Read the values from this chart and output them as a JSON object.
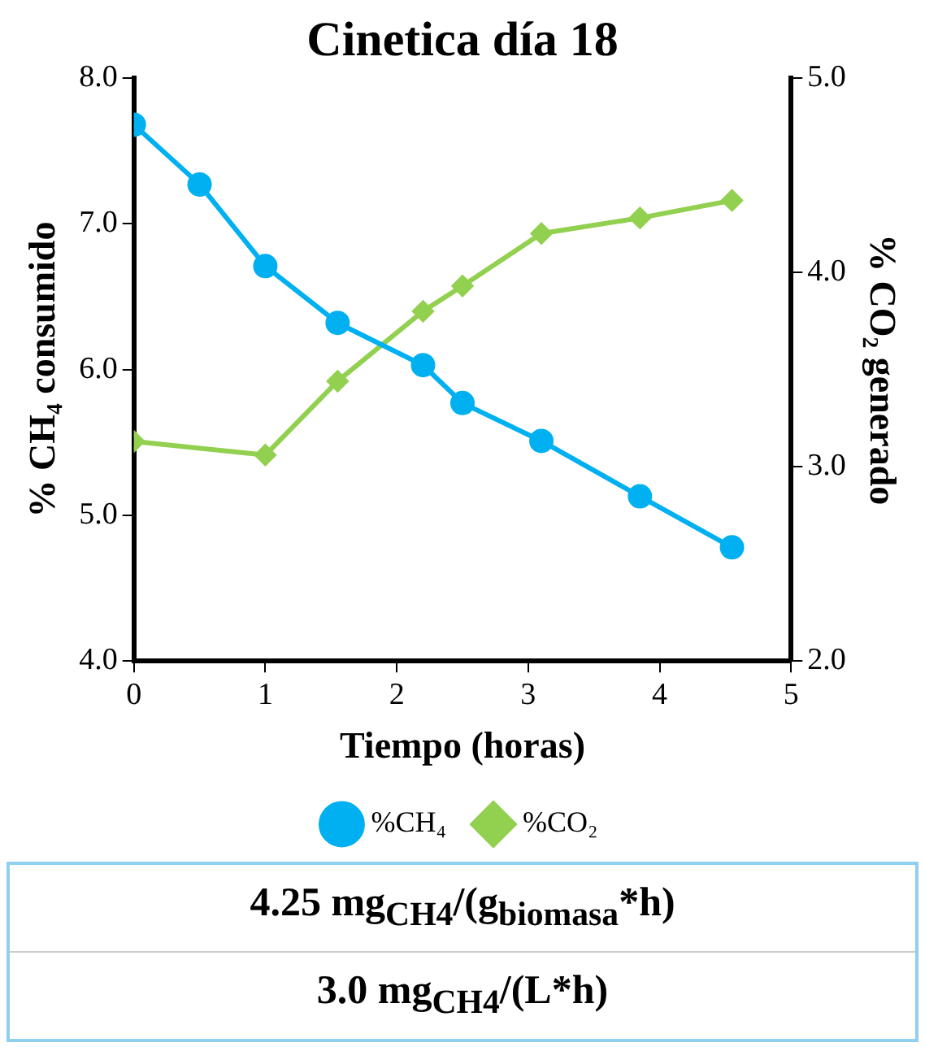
{
  "chart_data": {
    "type": "line",
    "title": "Cinetica día 18",
    "xlabel": "Tiempo (horas)",
    "ylabel": "% CH₄ consumido",
    "y2label": "% CO₂ generado",
    "series": [
      {
        "name": "%CH₄",
        "color": "#00b0f0",
        "marker": "circle",
        "x": [
          0,
          0.5,
          1,
          1.55,
          2.2,
          2.5,
          3.1,
          3.85,
          4.55
        ],
        "values": [
          7.68,
          7.27,
          6.71,
          6.32,
          6.03,
          5.77,
          5.51,
          5.13,
          4.78
        ]
      },
      {
        "name": "%CO₂",
        "color": "#92d050",
        "marker": "diamond",
        "axis": "y2",
        "x": [
          0,
          1,
          1.55,
          2.2,
          2.5,
          3.1,
          3.85,
          4.55
        ],
        "values": [
          3.13,
          3.06,
          3.44,
          3.8,
          3.93,
          4.2,
          4.28,
          4.37
        ]
      }
    ],
    "xlim": [
      0,
      5
    ],
    "xticks": [
      0,
      1,
      2,
      3,
      4,
      5
    ],
    "ylim": [
      4,
      8
    ],
    "yticks": [
      {
        "value": 4,
        "label": "4.0"
      },
      {
        "value": 5,
        "label": "5.0"
      },
      {
        "value": 6,
        "label": "6.0"
      },
      {
        "value": 7,
        "label": "7.0"
      },
      {
        "value": 8,
        "label": "8.0"
      }
    ],
    "y2lim": [
      2,
      5
    ],
    "y2ticks": [
      {
        "value": 2,
        "label": "2.0"
      },
      {
        "value": 3,
        "label": "3.0"
      },
      {
        "value": 4,
        "label": "4.0"
      },
      {
        "value": 5,
        "label": "5.0"
      }
    ],
    "grid": false,
    "legend": "bottom",
    "line_style": "solid",
    "annotations": [
      "4.25 mg$_{CH4}$/(g$_{biomasa}$*h)",
      "3.0 mg$_{CH4}$/(L*h)"
    ]
  }
}
